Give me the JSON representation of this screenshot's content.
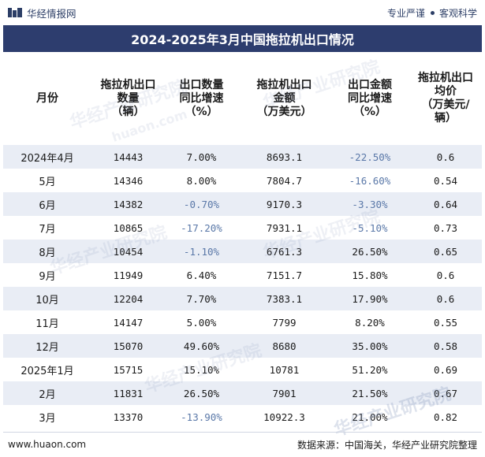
{
  "header": {
    "brand_name": "华经情报网",
    "tagline_left": "专业严谨",
    "tagline_right": "客观科学"
  },
  "title": "2024-2025年3月中国拖拉机出口情况",
  "table": {
    "columns": [
      [
        "月份"
      ],
      [
        "拖拉机出口",
        "数量",
        "（辆）"
      ],
      [
        "出口数量",
        "同比增速",
        "（%）"
      ],
      [
        "拖拉机出口",
        "金额",
        "（万美元）"
      ],
      [
        "出口金额",
        "同比增速",
        "（%）"
      ],
      [
        "拖拉机出口",
        "均价",
        "（万美元/",
        "辆）"
      ]
    ],
    "rows": [
      [
        "2024年4月",
        "14443",
        "7.00%",
        "8693.1",
        "-22.50%",
        "0.6"
      ],
      [
        "5月",
        "14346",
        "8.00%",
        "7804.7",
        "-16.60%",
        "0.54"
      ],
      [
        "6月",
        "14382",
        "-0.70%",
        "9170.3",
        "-3.30%",
        "0.64"
      ],
      [
        "7月",
        "10865",
        "-17.20%",
        "7931.1",
        "-5.10%",
        "0.73"
      ],
      [
        "8月",
        "10454",
        "-1.10%",
        "6761.3",
        "26.50%",
        "0.65"
      ],
      [
        "9月",
        "11949",
        "6.40%",
        "7151.7",
        "15.80%",
        "0.6"
      ],
      [
        "10月",
        "12204",
        "7.70%",
        "7383.1",
        "17.90%",
        "0.6"
      ],
      [
        "11月",
        "14147",
        "5.00%",
        "7799",
        "8.20%",
        "0.55"
      ],
      [
        "12月",
        "15070",
        "49.60%",
        "8680",
        "35.00%",
        "0.58"
      ],
      [
        "2025年1月",
        "15715",
        "15.10%",
        "10781",
        "51.20%",
        "0.69"
      ],
      [
        "2月",
        "11831",
        "26.50%",
        "7901",
        "21.50%",
        "0.67"
      ],
      [
        "3月",
        "13370",
        "-13.90%",
        "10922.3",
        "21.00%",
        "0.82"
      ]
    ]
  },
  "watermarks": [
    "华经产业研究院",
    "huaon.com"
  ],
  "footer": {
    "website": "www.huaon.com",
    "source": "数据来源：中国海关，华经产业研究院整理"
  },
  "colors": {
    "title_bg": "#2d3d6e",
    "stripe": "#e9edf5",
    "negative": "#5a78a8"
  }
}
